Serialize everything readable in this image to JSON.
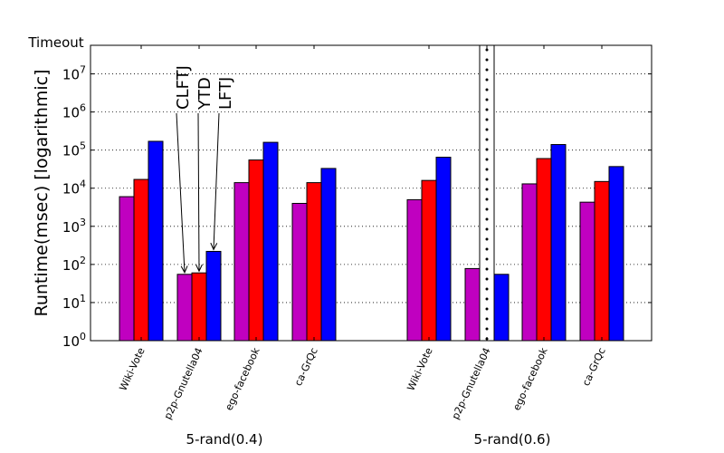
{
  "chart_data": {
    "type": "bar",
    "ylabel": "Runtime(msec) [logarithmic]",
    "yscale": "log",
    "ylim_exponent": [
      0,
      7.75
    ],
    "timeout_label": "Timeout",
    "y_ticks": [
      {
        "exp": 0,
        "base": "10",
        "sup": "0"
      },
      {
        "exp": 1,
        "base": "10",
        "sup": "1"
      },
      {
        "exp": 2,
        "base": "10",
        "sup": "2"
      },
      {
        "exp": 3,
        "base": "10",
        "sup": "3"
      },
      {
        "exp": 4,
        "base": "10",
        "sup": "4"
      },
      {
        "exp": 5,
        "base": "10",
        "sup": "5"
      },
      {
        "exp": 6,
        "base": "10",
        "sup": "6"
      },
      {
        "exp": 7,
        "base": "10",
        "sup": "7"
      }
    ],
    "series": [
      {
        "name": "CLFTJ",
        "color": "#c000c0"
      },
      {
        "name": "YTD",
        "color": "#ff0000"
      },
      {
        "name": "LFTJ",
        "color": "#0000ff"
      }
    ],
    "groups": [
      {
        "label": "5-rand(0.4)",
        "categories": [
          {
            "name": "Wiki-Vote",
            "values": [
              6000,
              17000,
              170000
            ]
          },
          {
            "name": "p2p-Gnutella04",
            "values": [
              55,
              60,
              220
            ]
          },
          {
            "name": "ego-facebook",
            "values": [
              14000,
              55000,
              160000
            ]
          },
          {
            "name": "ca-GrQc",
            "values": [
              4000,
              14000,
              33000
            ]
          }
        ]
      },
      {
        "label": "5-rand(0.6)",
        "categories": [
          {
            "name": "Wiki-Vote",
            "values": [
              5000,
              16000,
              65000
            ]
          },
          {
            "name": "p2p-Gnutella04",
            "values": [
              78,
              null,
              55
            ],
            "timeout_series": 1
          },
          {
            "name": "ego-facebook",
            "values": [
              13000,
              60000,
              140000
            ]
          },
          {
            "name": "ca-GrQc",
            "values": [
              4300,
              15000,
              37000
            ]
          }
        ]
      }
    ],
    "annotations": [
      {
        "text": "CLFTJ",
        "points_to": {
          "group": 0,
          "category": 1,
          "series": 0
        }
      },
      {
        "text": "YTD",
        "points_to": {
          "group": 0,
          "category": 1,
          "series": 1
        }
      },
      {
        "text": "LFTJ",
        "points_to": {
          "group": 0,
          "category": 1,
          "series": 2
        }
      }
    ]
  }
}
